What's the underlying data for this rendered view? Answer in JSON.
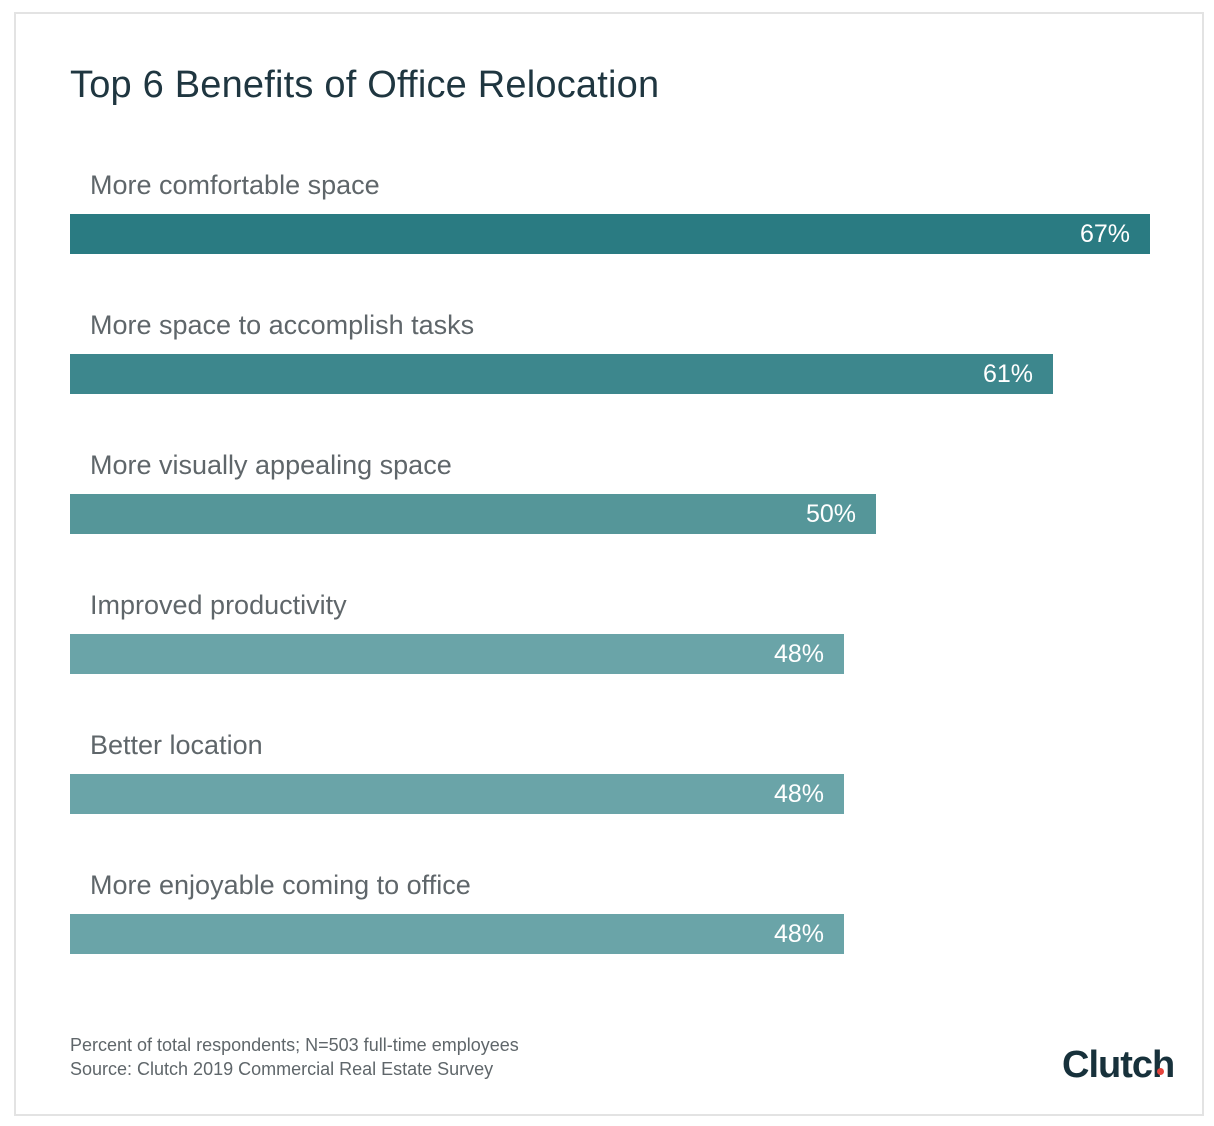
{
  "chart_data": {
    "type": "bar",
    "orientation": "horizontal",
    "title": "Top 6 Benefits of Office Relocation",
    "categories": [
      "More comfortable space",
      "More space to accomplish tasks",
      "More visually appealing space",
      "Improved productivity",
      "Better location",
      "More enjoyable coming to office"
    ],
    "values": [
      67,
      61,
      50,
      48,
      48,
      48
    ],
    "value_labels": [
      "67%",
      "61%",
      "50%",
      "48%",
      "48%",
      "48%"
    ],
    "unit": "%",
    "colors": [
      "#2a7b82",
      "#3d878d",
      "#559699",
      "#6aa4a8",
      "#6aa4a8",
      "#6aa4a8"
    ],
    "grid": false,
    "legend": "none"
  },
  "footnote": {
    "line1": "Percent of total respondents; N=503 full-time employees",
    "line2": "Source: Clutch 2019 Commercial Real Estate Survey"
  },
  "logo": {
    "text": "Clutch",
    "dot_color": "#e5443c"
  }
}
